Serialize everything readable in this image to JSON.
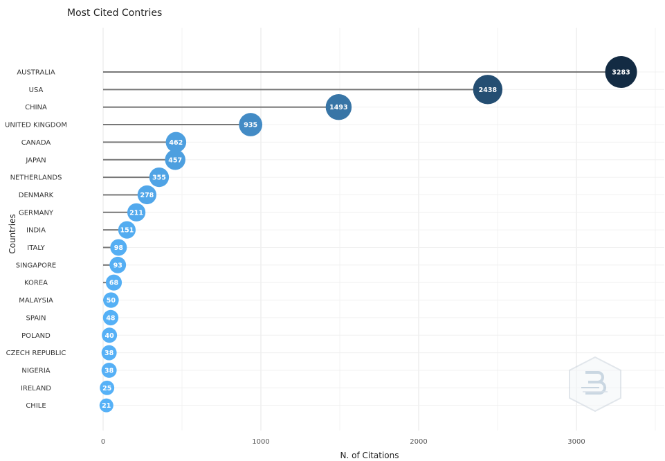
{
  "chart_data": {
    "type": "scatter",
    "style": "lollipop",
    "title": "Most Cited Contries",
    "xlabel": "N. of Citations",
    "ylabel": "Countries",
    "xlim": [
      0,
      3500
    ],
    "xticks": [
      0,
      1000,
      2000,
      3000
    ],
    "grid": true,
    "categories": [
      "AUSTRALIA",
      "USA",
      "CHINA",
      "UNITED KINGDOM",
      "CANADA",
      "JAPAN",
      "NETHERLANDS",
      "DENMARK",
      "GERMANY",
      "INDIA",
      "ITALY",
      "SINGAPORE",
      "KOREA",
      "MALAYSIA",
      "SPAIN",
      "POLAND",
      "CZECH REPUBLIC",
      "NIGERIA",
      "IRELAND",
      "CHILE"
    ],
    "values": [
      3283,
      2438,
      1493,
      935,
      462,
      457,
      355,
      278,
      211,
      151,
      98,
      93,
      68,
      50,
      48,
      40,
      38,
      38,
      25,
      21
    ],
    "color_scale": {
      "high": "#132b43",
      "low": "#56b1f7"
    },
    "stem_color": "#777777"
  }
}
